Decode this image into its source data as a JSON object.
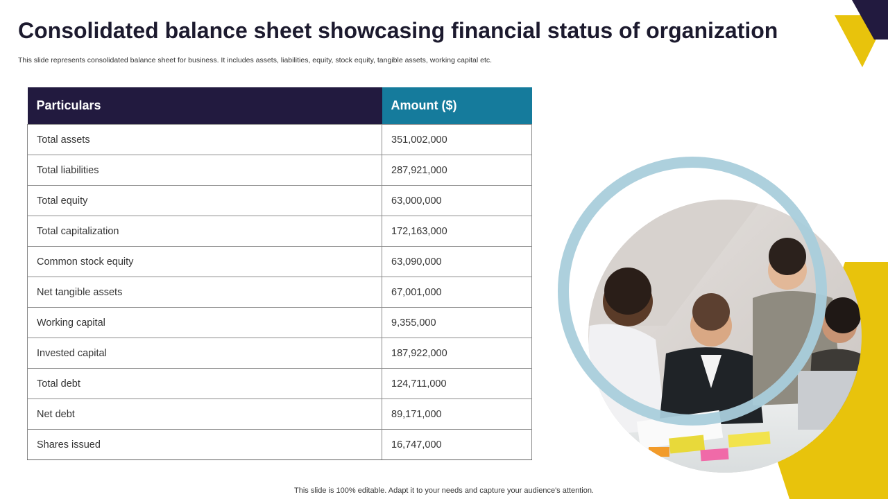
{
  "slide": {
    "title": "Consolidated balance sheet showcasing financial status of organization",
    "subtitle": "This slide represents consolidated balance sheet for business. It includes assets, liabilities, equity, stock equity, tangible assets, working capital etc.",
    "footer": "This slide is 100% editable. Adapt it to your needs and capture your audience's attention."
  },
  "table": {
    "headers": {
      "particulars": "Particulars",
      "amount": "Amount ($)"
    },
    "rows": [
      {
        "particular": "Total assets",
        "amount": "351,002,000"
      },
      {
        "particular": "Total liabilities",
        "amount": "287,921,000"
      },
      {
        "particular": "Total equity",
        "amount": "63,000,000"
      },
      {
        "particular": "Total capitalization",
        "amount": "172,163,000"
      },
      {
        "particular": "Common stock equity",
        "amount": "63,090,000"
      },
      {
        "particular": "Net tangible assets",
        "amount": "67,001,000"
      },
      {
        "particular": "Working capital",
        "amount": "9,355,000"
      },
      {
        "particular": "Invested capital",
        "amount": "187,922,000"
      },
      {
        "particular": "Total debt",
        "amount": "124,711,000"
      },
      {
        "particular": "Net debt",
        "amount": "89,171,000"
      },
      {
        "particular": "Shares issued",
        "amount": "16,747,000"
      }
    ]
  },
  "colors": {
    "header_dark": "#221a3f",
    "header_teal": "#157b9c",
    "accent_yellow": "#e8c30c",
    "accent_navy": "#221a3f",
    "ring_blue": "#a9cedb"
  },
  "image": {
    "icon": "team-meeting-photo"
  }
}
